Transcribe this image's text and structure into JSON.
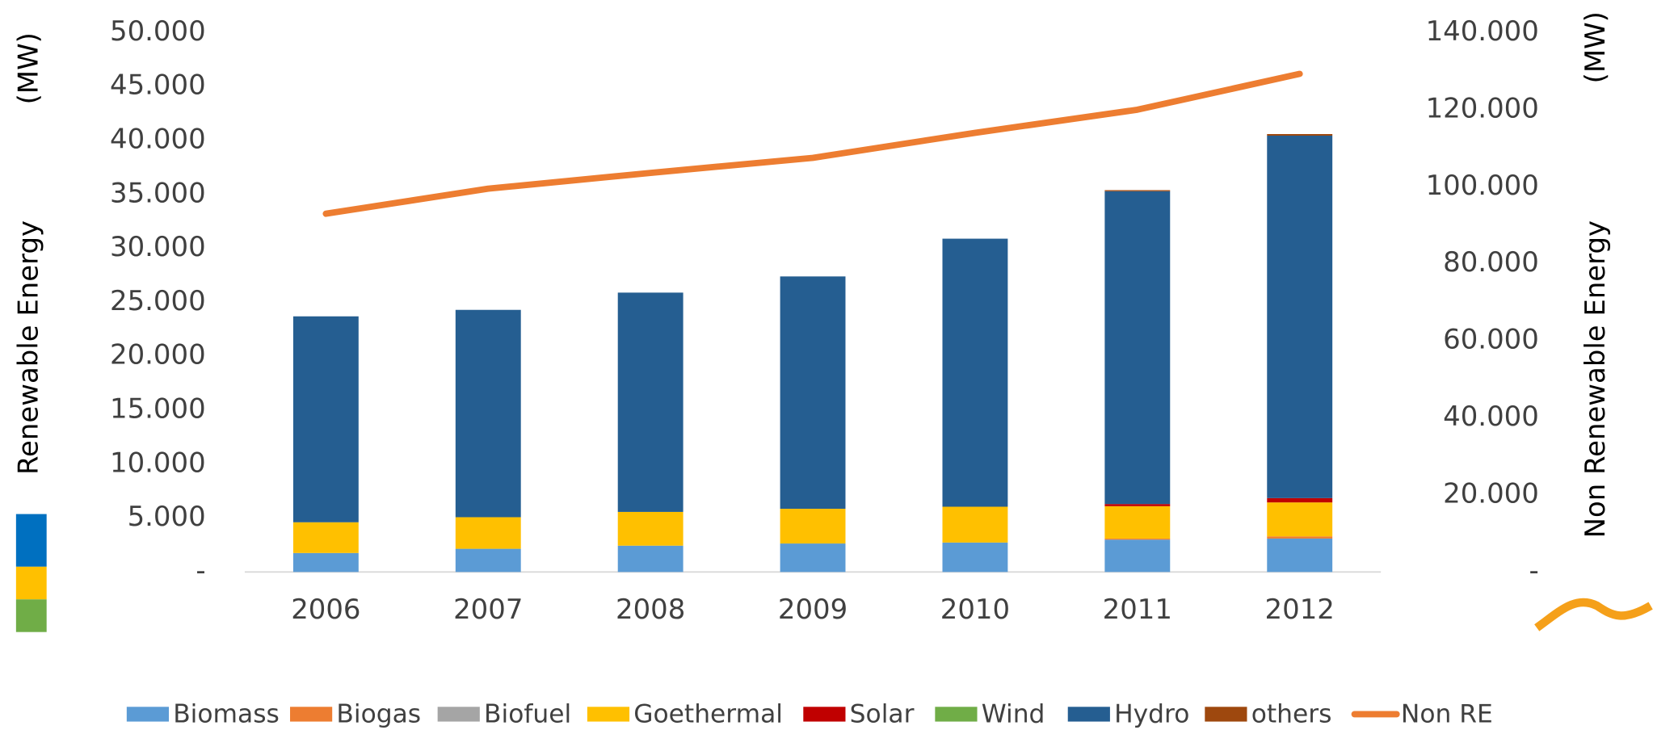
{
  "chart_data": {
    "type": "bar",
    "stacked": true,
    "y_title": "Renewable Energy",
    "y_unit": "(MW)",
    "y2_title": "Non Renewable Energy",
    "y2_unit": "(MW)",
    "categories": [
      "2006",
      "2007",
      "2008",
      "2009",
      "2010",
      "2011",
      "2012"
    ],
    "series": [
      {
        "name": "Biomass",
        "color": "#5b9bd5",
        "values": [
          1760,
          2150,
          2440,
          2640,
          2730,
          3000,
          3100
        ]
      },
      {
        "name": "Biogas",
        "color": "#ed7d31",
        "values": [
          0,
          0,
          0,
          0,
          0,
          100,
          200
        ]
      },
      {
        "name": "Biofuel",
        "color": "#a5a5a5",
        "values": [
          0,
          0,
          0,
          0,
          0,
          0,
          0
        ]
      },
      {
        "name": "Goethermal",
        "color": "#ffc000",
        "values": [
          2850,
          2930,
          3130,
          3220,
          3320,
          3000,
          3150
        ]
      },
      {
        "name": "Solar",
        "color": "#c00000",
        "values": [
          0,
          0,
          0,
          0,
          0,
          200,
          400
        ]
      },
      {
        "name": "Wind",
        "color": "#70ad47",
        "values": [
          0,
          0,
          0,
          0,
          0,
          0,
          0
        ]
      },
      {
        "name": "Hydro",
        "color": "#255e91",
        "values": [
          19090,
          19220,
          20330,
          21540,
          24850,
          29000,
          33600
        ]
      },
      {
        "name": "others",
        "color": "#9e480e",
        "values": [
          0,
          0,
          0,
          0,
          0,
          100,
          150
        ]
      },
      {
        "name": "Non RE",
        "type": "line",
        "axis": "y2",
        "color": "#ed7d31",
        "values": [
          93000,
          99500,
          103600,
          107500,
          114000,
          120000,
          129300
        ]
      }
    ],
    "ylim": [
      0,
      50000
    ],
    "yticks": [
      {
        "value": 0,
        "label": "-"
      },
      {
        "value": 5000,
        "label": "5.000"
      },
      {
        "value": 10000,
        "label": "10.000"
      },
      {
        "value": 15000,
        "label": "15.000"
      },
      {
        "value": 20000,
        "label": "20.000"
      },
      {
        "value": 25000,
        "label": "25.000"
      },
      {
        "value": 30000,
        "label": "30.000"
      },
      {
        "value": 35000,
        "label": "35.000"
      },
      {
        "value": 40000,
        "label": "40.000"
      },
      {
        "value": 45000,
        "label": "45.000"
      },
      {
        "value": 50000,
        "label": "50.000"
      }
    ],
    "y2lim": [
      0,
      140000
    ],
    "y2ticks": [
      {
        "value": 0,
        "label": "-"
      },
      {
        "value": 20000,
        "label": "20.000"
      },
      {
        "value": 40000,
        "label": "40.000"
      },
      {
        "value": 60000,
        "label": "60.000"
      },
      {
        "value": 80000,
        "label": "80.000"
      },
      {
        "value": 100000,
        "label": "100.000"
      },
      {
        "value": 120000,
        "label": "120.000"
      },
      {
        "value": 140000,
        "label": "140.000"
      }
    ],
    "legend": "bottom",
    "grid": false
  }
}
